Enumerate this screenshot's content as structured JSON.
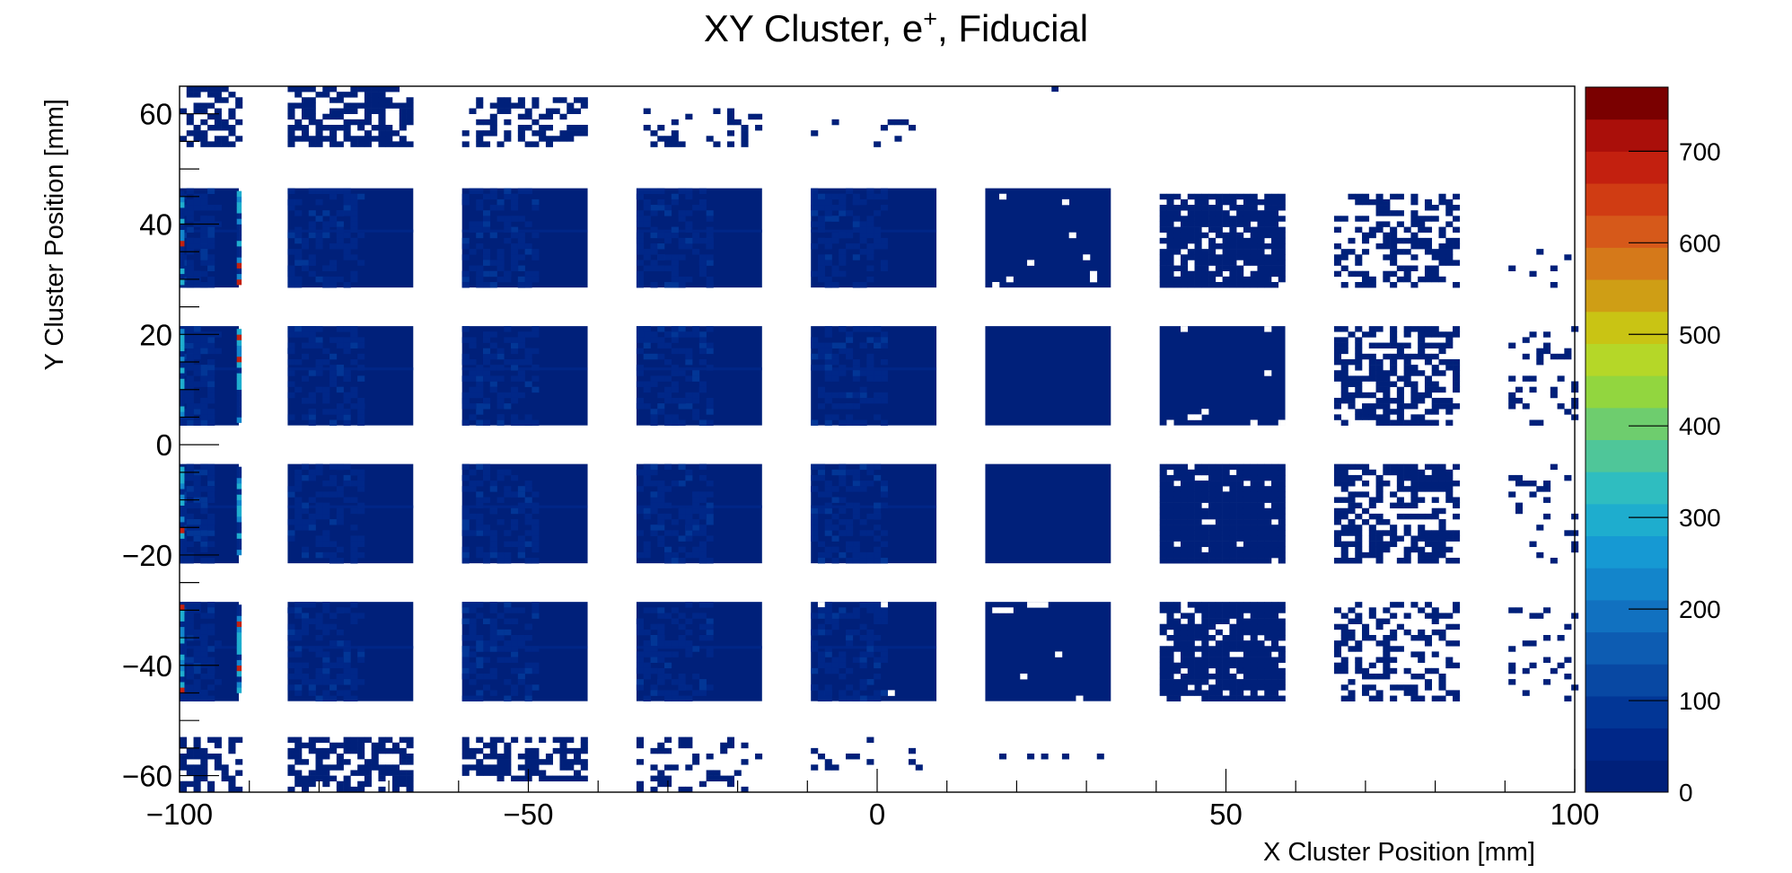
{
  "chart_data": {
    "type": "heatmap",
    "title": "XY Cluster, e",
    "title_sup": "+",
    "title_suffix": ", Fiducial",
    "xlabel": "X Cluster Position [mm]",
    "ylabel": "Y Cluster Position [mm]",
    "xlim": [
      -100,
      100
    ],
    "ylim": [
      -63,
      65
    ],
    "x_ticks": [
      -100,
      -50,
      0,
      50,
      100
    ],
    "x_tick_labels": [
      "−100",
      "−50",
      "0",
      "50",
      "100"
    ],
    "y_ticks": [
      -60,
      -40,
      -20,
      0,
      20,
      40,
      60
    ],
    "y_tick_labels": [
      "−60",
      "−40",
      "−20",
      "0",
      "20",
      "40",
      "60"
    ],
    "z_range": [
      0,
      770
    ],
    "z_ticks": [
      0,
      100,
      200,
      300,
      400,
      500,
      600,
      700
    ],
    "z_tick_labels": [
      "0",
      "100",
      "200",
      "300",
      "400",
      "500",
      "600",
      "700"
    ],
    "colorbar_colors": [
      "#00207a",
      "#002788",
      "#023696",
      "#0848a3",
      "#0d5cb2",
      "#1171c0",
      "#1385cb",
      "#1699d3",
      "#1eadce",
      "#2fbdc0",
      "#4fc699",
      "#6ecd6e",
      "#92d63f",
      "#b5d728",
      "#c9c414",
      "#cf9e15",
      "#d5791a",
      "#d6591a",
      "#d03c13",
      "#c3200f",
      "#aa0f0a",
      "#7a0000"
    ],
    "columns": [
      {
        "x": [
          -100,
          -91.5
        ],
        "rows": [
          {
            "y": [
              54,
              65
            ],
            "density": 0.55
          },
          {
            "y": [
              28.5,
              46.5
            ],
            "density": 1.0
          },
          {
            "y": [
              3.5,
              21.5
            ],
            "density": 1.0
          },
          {
            "y": [
              -21.5,
              -3.5
            ],
            "density": 1.0
          },
          {
            "y": [
              -46.5,
              -28.5
            ],
            "density": 1.0
          },
          {
            "y": [
              -63,
              -53.5
            ],
            "density": 0.6
          }
        ]
      },
      {
        "x": [
          -84.5,
          -66.5
        ],
        "rows": [
          {
            "y": [
              54,
              65
            ],
            "density": 0.62
          },
          {
            "y": [
              28.5,
              46.5
            ],
            "density": 1.0
          },
          {
            "y": [
              3.5,
              21.5
            ],
            "density": 1.0
          },
          {
            "y": [
              -21.5,
              -3.5
            ],
            "density": 1.0
          },
          {
            "y": [
              -46.5,
              -28.5
            ],
            "density": 1.0
          },
          {
            "y": [
              -63,
              -53.5
            ],
            "density": 0.62
          }
        ]
      },
      {
        "x": [
          -59.5,
          -41.5
        ],
        "rows": [
          {
            "y": [
              54,
              63
            ],
            "density": 0.5
          },
          {
            "y": [
              28.5,
              46.5
            ],
            "density": 1.0
          },
          {
            "y": [
              3.5,
              21.5
            ],
            "density": 1.0
          },
          {
            "y": [
              -21.5,
              -3.5
            ],
            "density": 1.0
          },
          {
            "y": [
              -46.5,
              -28.5
            ],
            "density": 1.0
          },
          {
            "y": [
              -61,
              -53.5
            ],
            "density": 0.58
          }
        ]
      },
      {
        "x": [
          -34.5,
          -16.5
        ],
        "rows": [
          {
            "y": [
              54,
              61
            ],
            "density": 0.22
          },
          {
            "y": [
              28.5,
              46.5
            ],
            "density": 1.0
          },
          {
            "y": [
              3.5,
              21.5
            ],
            "density": 1.0
          },
          {
            "y": [
              -21.5,
              -3.5
            ],
            "density": 1.0
          },
          {
            "y": [
              -46.5,
              -28.5
            ],
            "density": 1.0
          },
          {
            "y": [
              -63,
              -53.5
            ],
            "density": 0.25
          }
        ]
      },
      {
        "x": [
          -9.5,
          8.5
        ],
        "rows": [
          {
            "y": [
              54,
              60
            ],
            "density": 0.06
          },
          {
            "y": [
              28.5,
              46.5
            ],
            "density": 1.0
          },
          {
            "y": [
              3.5,
              21.5
            ],
            "density": 1.0
          },
          {
            "y": [
              -21.5,
              -3.5
            ],
            "density": 1.0
          },
          {
            "y": [
              -46.5,
              -28.5
            ],
            "density": 0.99
          },
          {
            "y": [
              -59,
              -53.5
            ],
            "density": 0.08
          }
        ]
      },
      {
        "x": [
          15.5,
          33.5
        ],
        "rows": [
          {
            "y": [
              54,
              57
            ],
            "density": 0.02
          },
          {
            "y": [
              28.5,
              46.5
            ],
            "density": 0.97
          },
          {
            "y": [
              3.5,
              21.5
            ],
            "density": 1.0
          },
          {
            "y": [
              -21.5,
              -3.5
            ],
            "density": 1.0
          },
          {
            "y": [
              -46.5,
              -28.5
            ],
            "density": 0.97
          },
          {
            "y": [
              -57,
              -54
            ],
            "density": 0.03
          }
        ]
      },
      {
        "x": [
          40.5,
          58.5
        ],
        "rows": [
          {
            "y": [
              28.5,
              45
            ],
            "density": 0.85
          },
          {
            "y": [
              3.5,
              21.5
            ],
            "density": 0.97
          },
          {
            "y": [
              -21.5,
              -3.5
            ],
            "density": 0.93
          },
          {
            "y": [
              -46.5,
              -28.5
            ],
            "density": 0.85
          }
        ]
      },
      {
        "x": [
          65.5,
          83.5
        ],
        "rows": [
          {
            "y": [
              28.5,
              45
            ],
            "density": 0.42
          },
          {
            "y": [
              3.5,
              21.5
            ],
            "density": 0.6
          },
          {
            "y": [
              -21.5,
              -3.5
            ],
            "density": 0.58
          },
          {
            "y": [
              -46.5,
              -28.5
            ],
            "density": 0.4
          }
        ]
      },
      {
        "x": [
          90.5,
          100
        ],
        "rows": [
          {
            "y": [
              28.5,
              35
            ],
            "density": 0.12
          },
          {
            "y": [
              3.5,
              21.5
            ],
            "density": 0.18
          },
          {
            "y": [
              -21.5,
              -3.5
            ],
            "density": 0.14
          },
          {
            "y": [
              -46.5,
              -28.5
            ],
            "density": 0.12
          }
        ]
      }
    ],
    "hot_lines_y": [
      38.5,
      13.5,
      -11.5,
      -37.0
    ],
    "hot_columns_x": [
      -100,
      -91.8
    ],
    "stray_points": [
      [
        -95,
        64
      ],
      [
        25,
        64
      ]
    ]
  }
}
